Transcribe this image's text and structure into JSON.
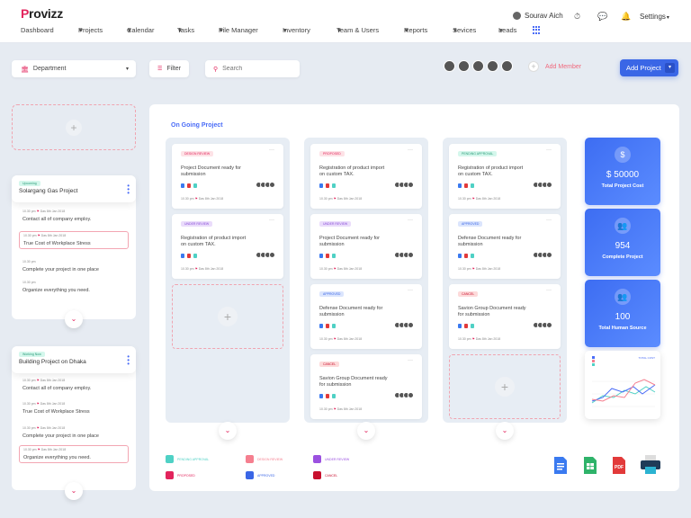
{
  "app": {
    "logo_initial": "P",
    "logo_rest": "rovizz"
  },
  "user": {
    "name": "Sourav Aich"
  },
  "settings_label": "Settings",
  "nav": [
    {
      "label": "Dashboard",
      "x": 23
    },
    {
      "label": "Projects",
      "x": 87
    },
    {
      "label": "Calendar",
      "x": 141
    },
    {
      "label": "Tasks",
      "x": 197
    },
    {
      "label": "File Manager",
      "x": 243
    },
    {
      "label": "Inventory",
      "x": 314
    },
    {
      "label": "Team & Users",
      "x": 374
    },
    {
      "label": "Reports",
      "x": 449
    },
    {
      "label": "Sevices",
      "x": 503
    },
    {
      "label": "Leads",
      "x": 554
    }
  ],
  "toolbar": {
    "department": "Department",
    "filter": "Filter",
    "search_placeholder": "Search",
    "add_member": "Add Member",
    "add_project": "Add Project"
  },
  "left_cards": [
    {
      "badge": "Upcoming",
      "title": "Solargang Gas Project",
      "tasks": [
        {
          "time": "10.30 pm",
          "flag": "Das",
          "date": "8th Jan 2018",
          "title": "Contact  all of company employ.",
          "highlight": false
        },
        {
          "time": "10.30 pm",
          "flag": "Das",
          "date": "8th Jan 2018",
          "title": "True Cost of Workplace Stress",
          "highlight": true
        },
        {
          "time": "10.30 pm",
          "flag": "",
          "date": "",
          "title": "Complete your project in one place",
          "highlight": false
        },
        {
          "time": "10.30 pm",
          "flag": "",
          "date": "",
          "title": "Organize everything you need.",
          "highlight": false
        }
      ]
    },
    {
      "badge": "Working Now",
      "title": "Building Project on Dhaka",
      "tasks": [
        {
          "time": "10.30 pm",
          "flag": "Das",
          "date": "8th Jan 2018",
          "title": "Contact  all of company employ.",
          "highlight": false
        },
        {
          "time": "10.30 pm",
          "flag": "Das",
          "date": "8th Jan 2018",
          "title": "True Cost of Workplace Stress",
          "highlight": false
        },
        {
          "time": "10.30 pm",
          "flag": "Das",
          "date": "8th Jan 2018",
          "title": "Complete your project in one place",
          "highlight": false
        },
        {
          "time": "10.30 pm",
          "flag": "Das",
          "date": "8th Jan 2018",
          "title": "Organize everything you need.",
          "highlight": true
        }
      ]
    }
  ],
  "board_title": "On Going Project",
  "columns": [
    {
      "cards": [
        {
          "badge": "DESIGN REVIEW",
          "badge_color": "#fde2e6",
          "badge_text": "#e2245c",
          "title": "Project Document ready for submission",
          "time": "10.30 pm",
          "flag": "Das",
          "date": "8th Jan 2018"
        },
        {
          "badge": "UNDER REVIEW",
          "badge_color": "#eadcfb",
          "badge_text": "#8a4fd8",
          "title": "Registration of product import on custom TAX.",
          "time": "10.30 pm",
          "flag": "Das",
          "date": "8th Jan 2018"
        }
      ]
    },
    {
      "cards": [
        {
          "badge": "PROPOSED",
          "badge_color": "#fde2e6",
          "badge_text": "#e2245c",
          "title": "Registration of product import on custom TAX.",
          "time": "10.30 pm",
          "flag": "Das",
          "date": "8th Jan 2018"
        },
        {
          "badge": "UNDER REVIEW",
          "badge_color": "#eadcfb",
          "badge_text": "#8a4fd8",
          "title": "Project Document ready for submission",
          "time": "10.30 pm",
          "flag": "Das",
          "date": "8th Jan 2018"
        },
        {
          "badge": "APPROVED",
          "badge_color": "#dbe5fd",
          "badge_text": "#3a66e6",
          "title": "Defense Document ready for submission",
          "time": "10.30 pm",
          "flag": "Das",
          "date": "8th Jan 2018"
        },
        {
          "badge": "CANCEL",
          "badge_color": "#fddada",
          "badge_text": "#c8102e",
          "title": "Savion Group Document ready for submission",
          "time": "10.30 pm",
          "flag": "Das",
          "date": "8th Jan 2018"
        }
      ]
    },
    {
      "cards": [
        {
          "badge": "PENDING APPROVAL",
          "badge_color": "#d4f7ec",
          "badge_text": "#2d9c7a",
          "title": "Registration of product import on custom TAX.",
          "time": "10.30 pm",
          "flag": "Das",
          "date": "8th Jan 2018"
        },
        {
          "badge": "APPROVED",
          "badge_color": "#dbe5fd",
          "badge_text": "#3a66e6",
          "title": "Defense Document ready for submission",
          "time": "10.30 pm",
          "flag": "Das",
          "date": "8th Jan 2018"
        },
        {
          "badge": "CANCEL",
          "badge_color": "#fddada",
          "badge_text": "#c8102e",
          "title": "Savion Group Document ready for submission",
          "time": "10.30 pm",
          "flag": "Das",
          "date": "8th Jan 2018"
        }
      ]
    }
  ],
  "stats": [
    {
      "value": "$ 50000",
      "label": "Total Project Cost",
      "icon": "dollar-icon"
    },
    {
      "value": "954",
      "label": "Complete Project",
      "icon": "users-icon"
    },
    {
      "value": "100",
      "label": "Total Human Source",
      "icon": "users-icon"
    }
  ],
  "mini_chart": {
    "legend_label": "TOTAL COST"
  },
  "legend": [
    {
      "label": "PENDING APPROVAL",
      "color": "#4fd1c5"
    },
    {
      "label": "DESIGN REVIEW",
      "color": "#f57f8f"
    },
    {
      "label": "UNDER REVIEW",
      "color": "#9b51e0"
    },
    {
      "label": "PROPOSED",
      "color": "#e2245c"
    },
    {
      "label": "APPROVED",
      "color": "#3a66e6"
    },
    {
      "label": "CANCEL",
      "color": "#c8102e"
    }
  ],
  "colors": {
    "accent": "#3a66e6",
    "brand": "#e2245c"
  }
}
